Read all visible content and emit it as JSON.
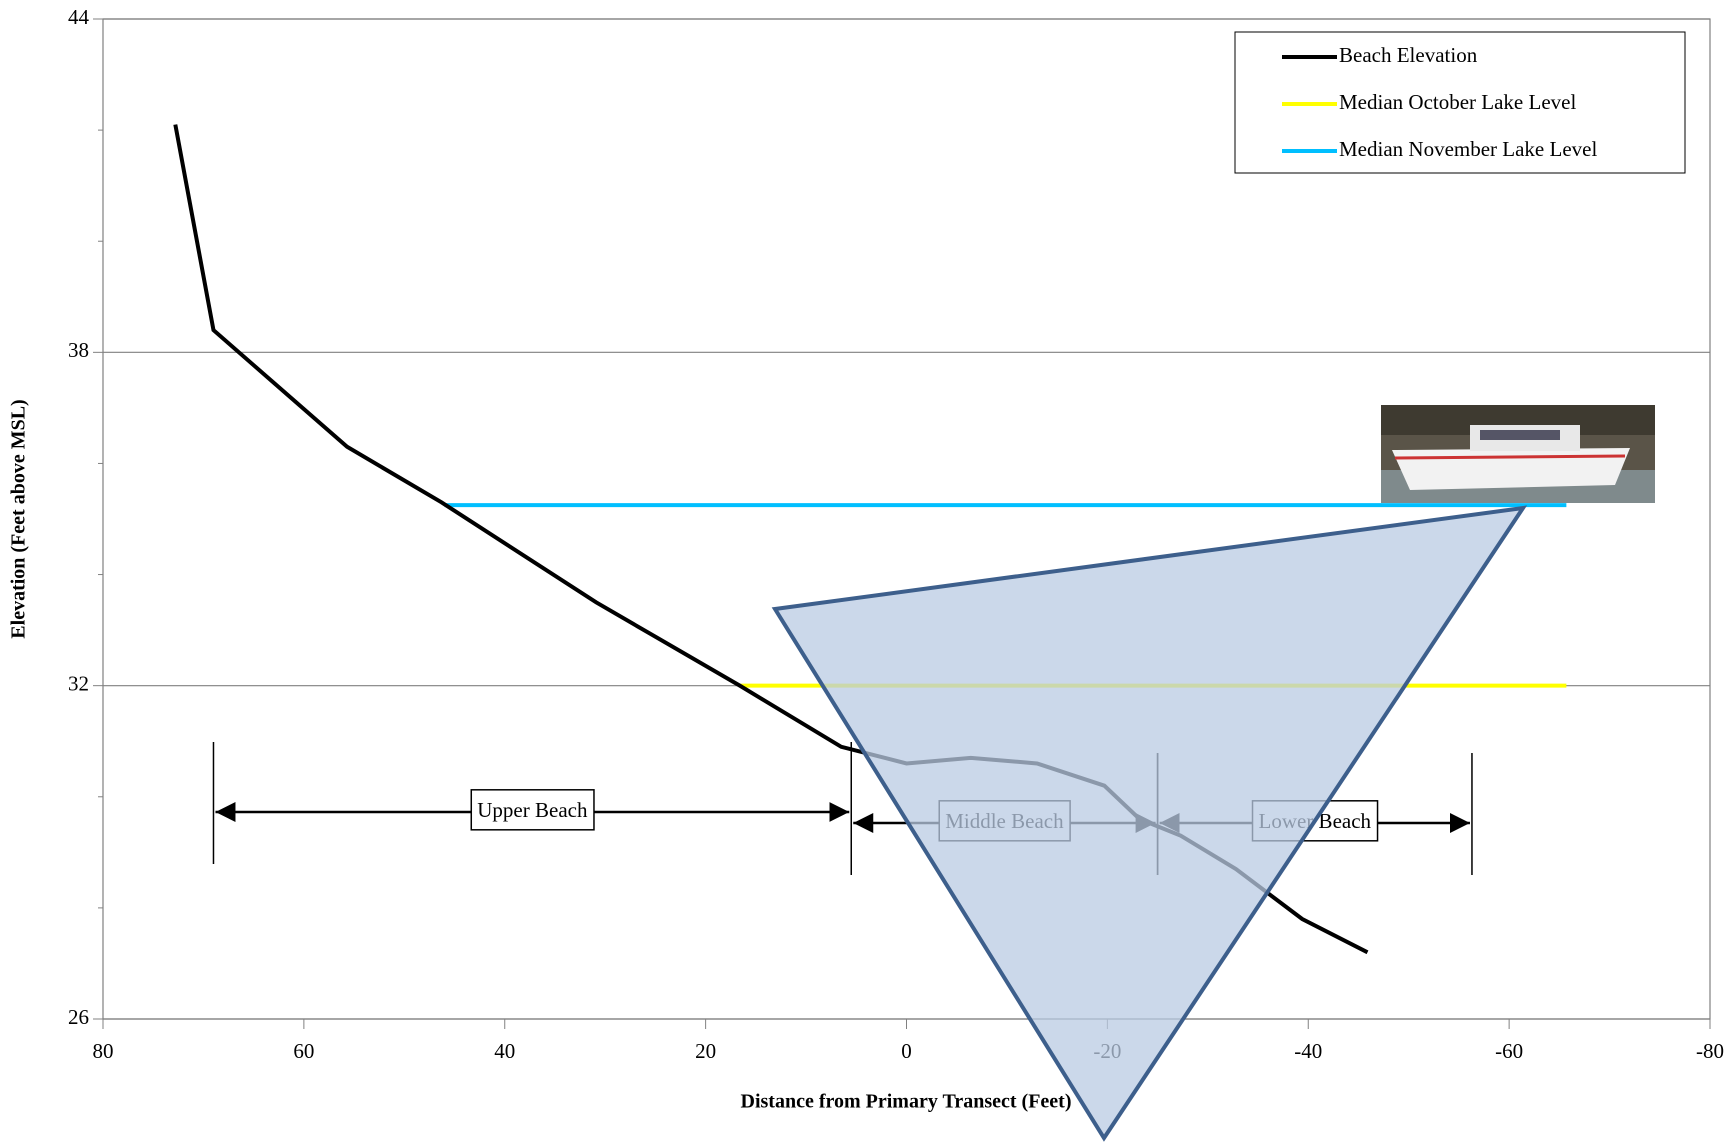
{
  "chart_data": {
    "type": "line",
    "xlabel": "Distance from Primary Transect (Feet)",
    "ylabel": "Elevation (Feet above MSL)",
    "xlim": [
      80,
      -80
    ],
    "xticks": [
      80,
      60,
      40,
      20,
      0,
      -20,
      -40,
      -60,
      -80
    ],
    "ylim": [
      26,
      44
    ],
    "yticks": [
      26,
      32,
      38,
      44
    ],
    "yminorticks": [
      28,
      30,
      34,
      36,
      40,
      42
    ],
    "grid": true,
    "legend": "upper right",
    "series": [
      {
        "name": "Beach Elevation",
        "color": "#000000",
        "x": [
          72.8,
          69,
          55.7,
          46.3,
          30.9,
          16.6,
          6.5,
          0,
          -6.4,
          -13,
          -19.7,
          -23.2,
          -27.3,
          -32.8,
          -39.4,
          -45.9
        ],
        "values": [
          42.1,
          38.4,
          36.3,
          35.3,
          33.5,
          32.0,
          30.9,
          30.6,
          30.7,
          30.6,
          30.2,
          29.6,
          29.3,
          28.7,
          27.8,
          27.2
        ]
      },
      {
        "name": "Median October Lake Level",
        "color": "#ffff00",
        "x": [
          16.6,
          -65.7
        ],
        "values": [
          32.0,
          32.0
        ]
      },
      {
        "name": "Median November Lake Level",
        "color": "#00bfff",
        "x": [
          46,
          -65.7
        ],
        "values": [
          35.25,
          35.25
        ]
      }
    ],
    "zones": [
      {
        "label": "Upper Beach",
        "from": 69,
        "to": 5.5
      },
      {
        "label": "Middle Beach",
        "from": 5.5,
        "to": -25
      },
      {
        "label": "Lower Beach",
        "from": -25,
        "to": -56.3
      }
    ]
  }
}
